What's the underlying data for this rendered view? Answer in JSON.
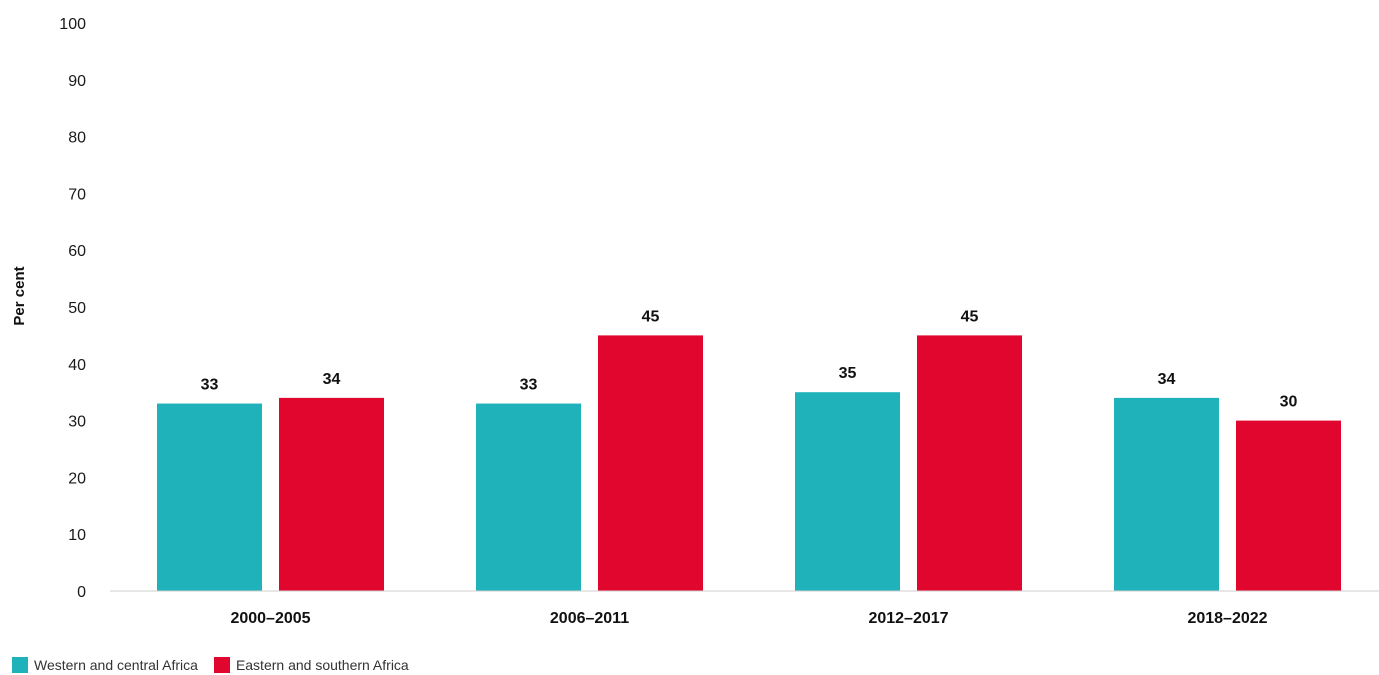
{
  "chart_data": {
    "type": "bar",
    "title": "",
    "xlabel": "",
    "ylabel": "Per cent",
    "ylim": [
      0,
      100
    ],
    "yticks": [
      0,
      10,
      20,
      30,
      40,
      50,
      60,
      70,
      80,
      90,
      100
    ],
    "grid": false,
    "legend_position": "bottom-left",
    "categories": [
      "2000–2005",
      "2006–2011",
      "2012–2017",
      "2018–2022"
    ],
    "series": [
      {
        "name": "Western and central Africa",
        "color": "#1fb2bb",
        "values": [
          33,
          33,
          35,
          34
        ],
        "labels": [
          "33",
          "33",
          "35",
          "34"
        ]
      },
      {
        "name": "Eastern and southern Africa",
        "color": "#e0062d",
        "values": [
          34,
          45,
          45,
          30
        ],
        "labels": [
          "34",
          "45",
          "45",
          "30"
        ]
      }
    ]
  }
}
